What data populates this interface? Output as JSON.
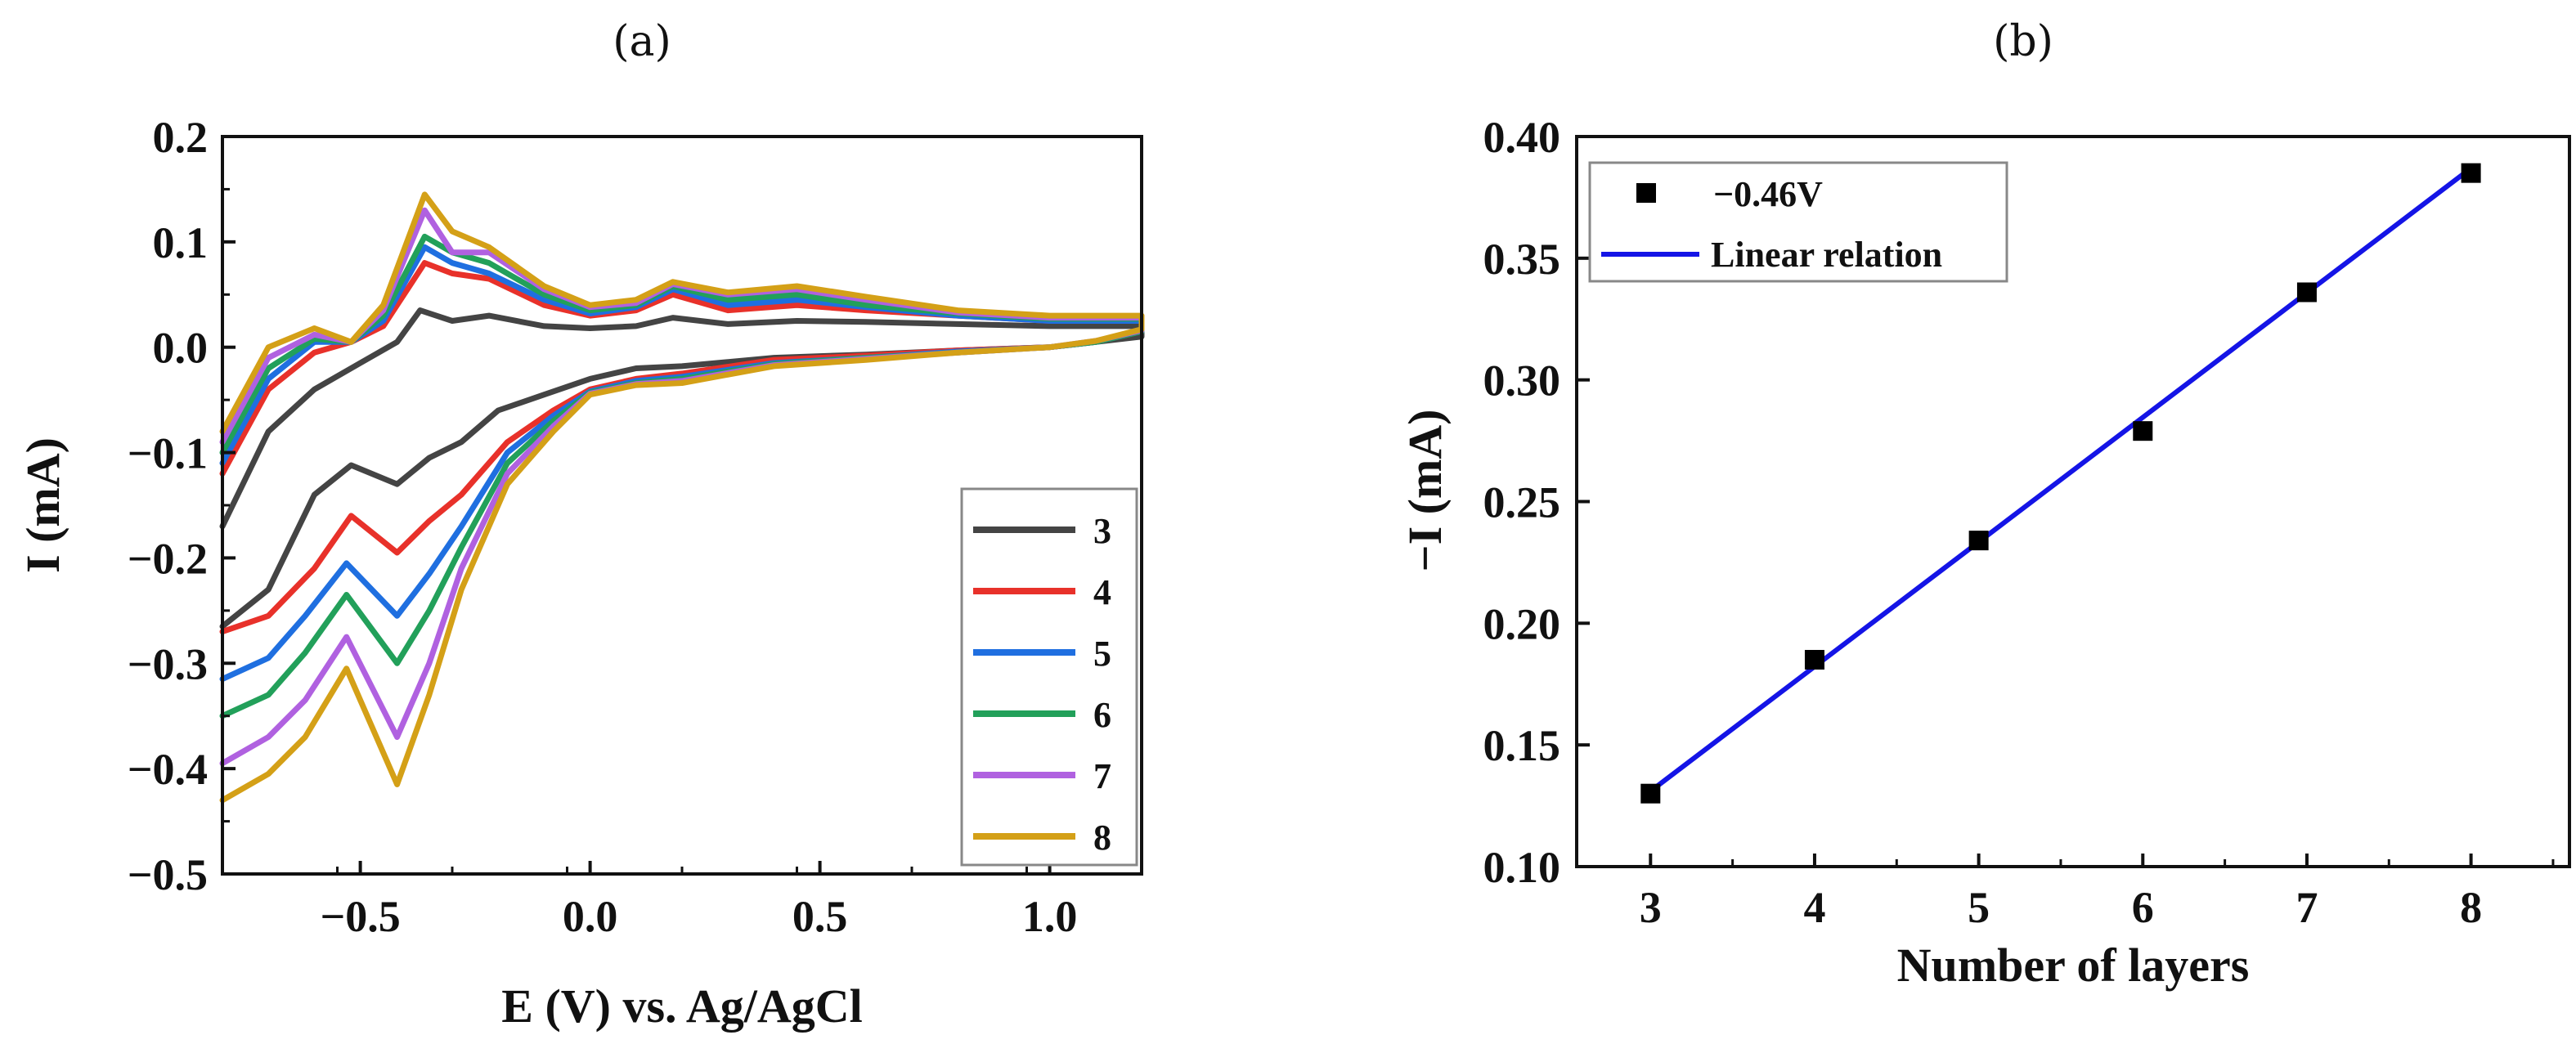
{
  "panels": {
    "a_label": "(a)",
    "b_label": "(b)"
  },
  "chart_data": [
    {
      "id": "a",
      "type": "line",
      "title": "",
      "xlabel": "E (V) vs. Ag/AgCl",
      "ylabel": "I (mA)",
      "xlim": [
        -0.8,
        1.2
      ],
      "ylim": [
        -0.5,
        0.2
      ],
      "xticks": [
        -0.5,
        0.0,
        0.5,
        1.0
      ],
      "xtick_labels": [
        "−0.5",
        "0.0",
        "0.5",
        "1.0"
      ],
      "yticks": [
        0.2,
        0.1,
        0.0,
        -0.1,
        -0.2,
        -0.3,
        -0.4,
        -0.5
      ],
      "ytick_labels": [
        "0.2",
        "0.1",
        "0.0",
        "−0.1",
        "−0.2",
        "−0.3",
        "−0.4",
        "−0.5"
      ],
      "legend_position": "bottom-right",
      "series": [
        {
          "name": "3",
          "color": "#444444",
          "upper": [
            [
              -0.8,
              -0.17
            ],
            [
              -0.7,
              -0.08
            ],
            [
              -0.6,
              -0.04
            ],
            [
              -0.5,
              -0.015
            ],
            [
              -0.42,
              0.005
            ],
            [
              -0.37,
              0.035
            ],
            [
              -0.3,
              0.025
            ],
            [
              -0.22,
              0.03
            ],
            [
              -0.1,
              0.02
            ],
            [
              0.0,
              0.018
            ],
            [
              0.1,
              0.02
            ],
            [
              0.18,
              0.028
            ],
            [
              0.3,
              0.022
            ],
            [
              0.45,
              0.025
            ],
            [
              0.6,
              0.024
            ],
            [
              0.8,
              0.022
            ],
            [
              1.0,
              0.02
            ],
            [
              1.2,
              0.02
            ]
          ],
          "lower": [
            [
              1.2,
              0.01
            ],
            [
              1.1,
              0.005
            ],
            [
              1.0,
              0.0
            ],
            [
              0.8,
              -0.003
            ],
            [
              0.6,
              -0.007
            ],
            [
              0.4,
              -0.01
            ],
            [
              0.2,
              -0.018
            ],
            [
              0.1,
              -0.02
            ],
            [
              0.0,
              -0.03
            ],
            [
              -0.1,
              -0.045
            ],
            [
              -0.2,
              -0.06
            ],
            [
              -0.28,
              -0.09
            ],
            [
              -0.35,
              -0.105
            ],
            [
              -0.42,
              -0.13
            ],
            [
              -0.52,
              -0.112
            ],
            [
              -0.6,
              -0.14
            ],
            [
              -0.7,
              -0.23
            ],
            [
              -0.8,
              -0.265
            ]
          ]
        },
        {
          "name": "4",
          "color": "#e8312a",
          "upper": [
            [
              -0.8,
              -0.12
            ],
            [
              -0.7,
              -0.04
            ],
            [
              -0.6,
              -0.005
            ],
            [
              -0.52,
              0.005
            ],
            [
              -0.45,
              0.02
            ],
            [
              -0.36,
              0.08
            ],
            [
              -0.3,
              0.07
            ],
            [
              -0.22,
              0.065
            ],
            [
              -0.1,
              0.04
            ],
            [
              0.0,
              0.03
            ],
            [
              0.1,
              0.035
            ],
            [
              0.18,
              0.05
            ],
            [
              0.3,
              0.035
            ],
            [
              0.45,
              0.04
            ],
            [
              0.6,
              0.035
            ],
            [
              0.8,
              0.03
            ],
            [
              1.0,
              0.025
            ],
            [
              1.2,
              0.025
            ]
          ],
          "lower": [
            [
              1.2,
              0.015
            ],
            [
              1.1,
              0.005
            ],
            [
              1.0,
              0.0
            ],
            [
              0.8,
              -0.003
            ],
            [
              0.6,
              -0.008
            ],
            [
              0.4,
              -0.012
            ],
            [
              0.2,
              -0.025
            ],
            [
              0.1,
              -0.03
            ],
            [
              0.0,
              -0.04
            ],
            [
              -0.08,
              -0.06
            ],
            [
              -0.18,
              -0.09
            ],
            [
              -0.28,
              -0.14
            ],
            [
              -0.35,
              -0.165
            ],
            [
              -0.42,
              -0.195
            ],
            [
              -0.52,
              -0.16
            ],
            [
              -0.6,
              -0.21
            ],
            [
              -0.7,
              -0.255
            ],
            [
              -0.8,
              -0.27
            ]
          ]
        },
        {
          "name": "5",
          "color": "#1f6fe0",
          "upper": [
            [
              -0.8,
              -0.11
            ],
            [
              -0.7,
              -0.03
            ],
            [
              -0.6,
              0.005
            ],
            [
              -0.52,
              0.005
            ],
            [
              -0.45,
              0.025
            ],
            [
              -0.36,
              0.095
            ],
            [
              -0.3,
              0.08
            ],
            [
              -0.22,
              0.07
            ],
            [
              -0.1,
              0.045
            ],
            [
              0.0,
              0.032
            ],
            [
              0.1,
              0.038
            ],
            [
              0.18,
              0.055
            ],
            [
              0.3,
              0.04
            ],
            [
              0.45,
              0.045
            ],
            [
              0.6,
              0.038
            ],
            [
              0.8,
              0.03
            ],
            [
              1.0,
              0.025
            ],
            [
              1.2,
              0.025
            ]
          ],
          "lower": [
            [
              1.2,
              0.015
            ],
            [
              1.1,
              0.005
            ],
            [
              1.0,
              0.0
            ],
            [
              0.8,
              -0.004
            ],
            [
              0.6,
              -0.01
            ],
            [
              0.4,
              -0.015
            ],
            [
              0.2,
              -0.028
            ],
            [
              0.1,
              -0.032
            ],
            [
              0.0,
              -0.042
            ],
            [
              -0.08,
              -0.065
            ],
            [
              -0.18,
              -0.1
            ],
            [
              -0.28,
              -0.17
            ],
            [
              -0.35,
              -0.215
            ],
            [
              -0.42,
              -0.255
            ],
            [
              -0.53,
              -0.205
            ],
            [
              -0.62,
              -0.255
            ],
            [
              -0.7,
              -0.295
            ],
            [
              -0.8,
              -0.315
            ]
          ]
        },
        {
          "name": "6",
          "color": "#22a05a",
          "upper": [
            [
              -0.8,
              -0.1
            ],
            [
              -0.7,
              -0.02
            ],
            [
              -0.6,
              0.008
            ],
            [
              -0.52,
              0.005
            ],
            [
              -0.45,
              0.03
            ],
            [
              -0.36,
              0.105
            ],
            [
              -0.3,
              0.09
            ],
            [
              -0.22,
              0.08
            ],
            [
              -0.1,
              0.05
            ],
            [
              0.0,
              0.035
            ],
            [
              0.1,
              0.04
            ],
            [
              0.18,
              0.058
            ],
            [
              0.3,
              0.045
            ],
            [
              0.45,
              0.05
            ],
            [
              0.6,
              0.04
            ],
            [
              0.8,
              0.032
            ],
            [
              1.0,
              0.027
            ],
            [
              1.2,
              0.027
            ]
          ],
          "lower": [
            [
              1.2,
              0.015
            ],
            [
              1.1,
              0.005
            ],
            [
              1.0,
              0.0
            ],
            [
              0.8,
              -0.005
            ],
            [
              0.6,
              -0.01
            ],
            [
              0.4,
              -0.016
            ],
            [
              0.2,
              -0.03
            ],
            [
              0.1,
              -0.034
            ],
            [
              0.0,
              -0.043
            ],
            [
              -0.08,
              -0.07
            ],
            [
              -0.18,
              -0.11
            ],
            [
              -0.28,
              -0.19
            ],
            [
              -0.35,
              -0.25
            ],
            [
              -0.42,
              -0.3
            ],
            [
              -0.53,
              -0.235
            ],
            [
              -0.62,
              -0.29
            ],
            [
              -0.7,
              -0.33
            ],
            [
              -0.8,
              -0.35
            ]
          ]
        },
        {
          "name": "7",
          "color": "#b061e0",
          "upper": [
            [
              -0.8,
              -0.09
            ],
            [
              -0.7,
              -0.01
            ],
            [
              -0.6,
              0.012
            ],
            [
              -0.52,
              0.005
            ],
            [
              -0.45,
              0.035
            ],
            [
              -0.36,
              0.13
            ],
            [
              -0.3,
              0.09
            ],
            [
              -0.22,
              0.09
            ],
            [
              -0.1,
              0.055
            ],
            [
              0.0,
              0.038
            ],
            [
              0.1,
              0.042
            ],
            [
              0.18,
              0.06
            ],
            [
              0.3,
              0.05
            ],
            [
              0.45,
              0.055
            ],
            [
              0.6,
              0.045
            ],
            [
              0.8,
              0.033
            ],
            [
              1.0,
              0.028
            ],
            [
              1.2,
              0.028
            ]
          ],
          "lower": [
            [
              1.2,
              0.016
            ],
            [
              1.1,
              0.006
            ],
            [
              1.0,
              0.0
            ],
            [
              0.8,
              -0.005
            ],
            [
              0.6,
              -0.011
            ],
            [
              0.4,
              -0.017
            ],
            [
              0.2,
              -0.032
            ],
            [
              0.1,
              -0.035
            ],
            [
              0.0,
              -0.044
            ],
            [
              -0.08,
              -0.075
            ],
            [
              -0.18,
              -0.12
            ],
            [
              -0.28,
              -0.21
            ],
            [
              -0.35,
              -0.3
            ],
            [
              -0.42,
              -0.37
            ],
            [
              -0.53,
              -0.275
            ],
            [
              -0.62,
              -0.335
            ],
            [
              -0.7,
              -0.37
            ],
            [
              -0.8,
              -0.395
            ]
          ]
        },
        {
          "name": "8",
          "color": "#d4a017",
          "upper": [
            [
              -0.8,
              -0.08
            ],
            [
              -0.7,
              0.0
            ],
            [
              -0.6,
              0.018
            ],
            [
              -0.52,
              0.005
            ],
            [
              -0.45,
              0.04
            ],
            [
              -0.36,
              0.145
            ],
            [
              -0.3,
              0.11
            ],
            [
              -0.22,
              0.095
            ],
            [
              -0.1,
              0.058
            ],
            [
              0.0,
              0.04
            ],
            [
              0.1,
              0.045
            ],
            [
              0.18,
              0.062
            ],
            [
              0.3,
              0.052
            ],
            [
              0.45,
              0.058
            ],
            [
              0.6,
              0.048
            ],
            [
              0.8,
              0.035
            ],
            [
              1.0,
              0.03
            ],
            [
              1.2,
              0.03
            ]
          ],
          "lower": [
            [
              1.2,
              0.017
            ],
            [
              1.1,
              0.006
            ],
            [
              1.0,
              0.0
            ],
            [
              0.8,
              -0.005
            ],
            [
              0.6,
              -0.012
            ],
            [
              0.4,
              -0.018
            ],
            [
              0.2,
              -0.034
            ],
            [
              0.1,
              -0.036
            ],
            [
              0.0,
              -0.045
            ],
            [
              -0.08,
              -0.08
            ],
            [
              -0.18,
              -0.13
            ],
            [
              -0.28,
              -0.23
            ],
            [
              -0.35,
              -0.33
            ],
            [
              -0.42,
              -0.415
            ],
            [
              -0.53,
              -0.305
            ],
            [
              -0.62,
              -0.37
            ],
            [
              -0.7,
              -0.405
            ],
            [
              -0.8,
              -0.43
            ]
          ]
        }
      ]
    },
    {
      "id": "b",
      "type": "scatter",
      "title": "",
      "xlabel": "Number of layers",
      "ylabel": "−I (mA)",
      "xlim": [
        2.55,
        8.6
      ],
      "ylim": [
        0.1,
        0.4
      ],
      "xticks": [
        3,
        4,
        5,
        6,
        7,
        8
      ],
      "xtick_labels": [
        "3",
        "4",
        "5",
        "6",
        "7",
        "8"
      ],
      "yticks": [
        0.4,
        0.35,
        0.3,
        0.25,
        0.2,
        0.15,
        0.1
      ],
      "ytick_labels": [
        "0.40",
        "0.35",
        "0.30",
        "0.25",
        "0.20",
        "0.15",
        "0.10"
      ],
      "legend_position": "top-left",
      "points_name": "−0.46V",
      "points_color": "#000000",
      "x": [
        3,
        4,
        5,
        6,
        7,
        8
      ],
      "y": [
        0.13,
        0.185,
        0.234,
        0.279,
        0.336,
        0.385
      ],
      "fit_name": "Linear relation",
      "fit_color": "#1414e6",
      "fit_x": [
        3,
        8
      ],
      "fit_y": [
        0.131,
        0.387
      ]
    }
  ]
}
